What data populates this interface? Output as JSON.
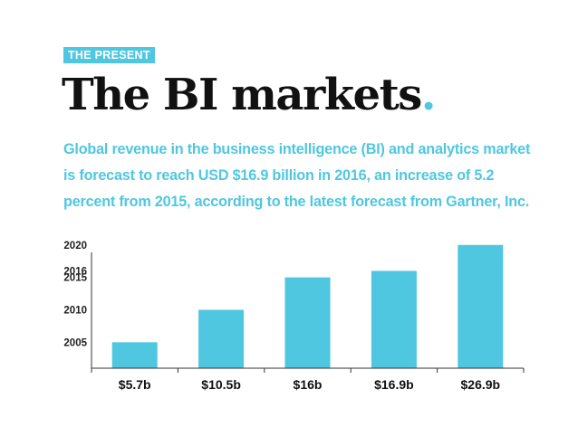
{
  "header": {
    "tag": "THE PRESENT",
    "title": "The BI markets",
    "title_dot": "."
  },
  "description": "Global revenue in the business intelligence (BI) and analytics market is forecast to reach USD $16.9 billion in 2016, an increase of 5.2 percent from 2015, according to the latest forecast from Gartner, Inc.",
  "colors": {
    "accent": "#4fc7e0",
    "title": "#111111"
  },
  "chart_data": {
    "type": "bar",
    "categories": [
      "$5.7b",
      "$10.5b",
      "$16b",
      "$16.9b",
      "$26.9b"
    ],
    "values": [
      2005,
      2010,
      2015,
      2016,
      2020
    ],
    "yticks": [
      2005,
      2010,
      2015,
      2016,
      2020
    ],
    "ylim": [
      2001,
      2022
    ],
    "title": "",
    "xlabel": "",
    "ylabel": ""
  }
}
